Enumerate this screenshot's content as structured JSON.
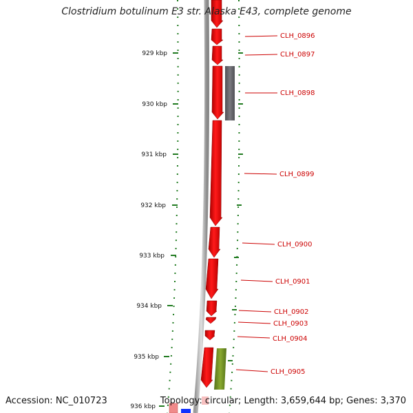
{
  "title": "Clostridium botulinum E3 str. Alaska E43, complete genome",
  "footer": {
    "accession": "Accession: NC_010723",
    "topology": "Topology: circular; Length: 3,659,644 bp; Genes: 3,370"
  },
  "colors": {
    "gene_forward": "#ff0000",
    "gene_other_gray": "#6e6e74",
    "gene_other_olive": "#6f8f1c",
    "gene_blue": "#1030ff",
    "backbone": "#808080",
    "tick": "#1f7a1f",
    "label": "#cc0000"
  },
  "scale": {
    "unit": "kbp",
    "ticks": [
      {
        "label": "929 kbp"
      },
      {
        "label": "930 kbp"
      },
      {
        "label": "931 kbp"
      },
      {
        "label": "932 kbp"
      },
      {
        "label": "933 kbp"
      },
      {
        "label": "934 kbp"
      },
      {
        "label": "935 kbp"
      },
      {
        "label": "936 kbp"
      }
    ]
  },
  "genes": [
    {
      "label": "CLH_0896"
    },
    {
      "label": "CLH_0897"
    },
    {
      "label": "CLH_0898"
    },
    {
      "label": "CLH_0899"
    },
    {
      "label": "CLH_0900"
    },
    {
      "label": "CLH_0901"
    },
    {
      "label": "CLH_0902"
    },
    {
      "label": "CLH_0903"
    },
    {
      "label": "CLH_0904"
    },
    {
      "label": "CLH_0905"
    }
  ]
}
